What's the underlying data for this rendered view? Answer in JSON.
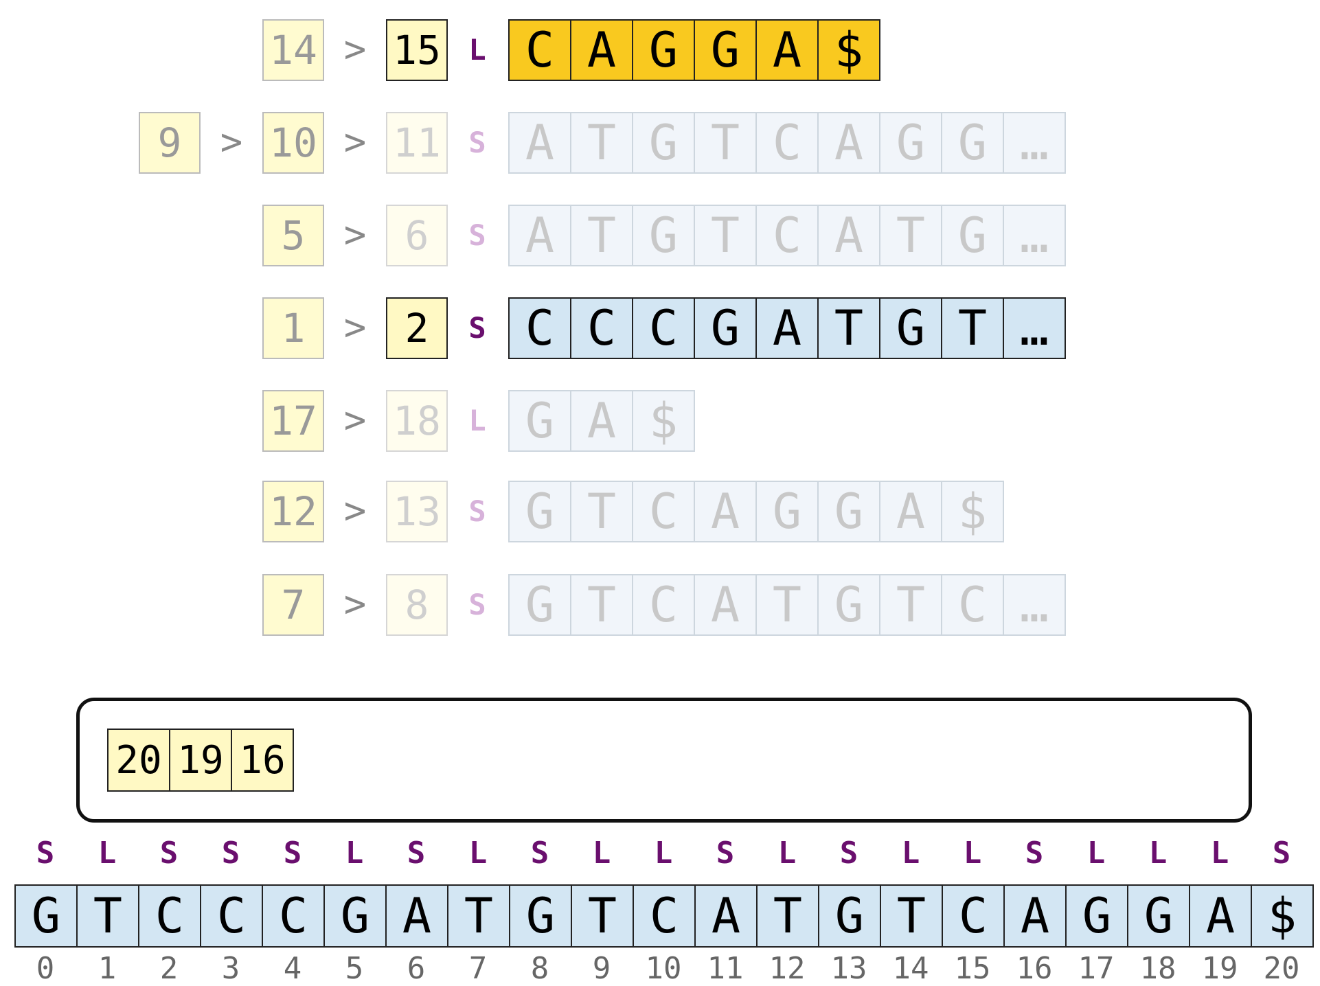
{
  "rows": [
    {
      "nums": [
        {
          "value": "14",
          "style": "dim"
        },
        {
          "value": "15",
          "style": "act"
        }
      ],
      "type": "L",
      "type_active": true,
      "chars": [
        "C",
        "A",
        "G",
        "G",
        "A",
        "$"
      ],
      "style": "orange"
    },
    {
      "nums": [
        {
          "value": "9",
          "style": "dim"
        },
        {
          "value": "10",
          "style": "dim"
        },
        {
          "value": "11",
          "style": "faint"
        }
      ],
      "type": "S",
      "type_active": false,
      "chars": [
        "A",
        "T",
        "G",
        "T",
        "C",
        "A",
        "G",
        "G",
        "…"
      ],
      "style": "faint"
    },
    {
      "nums": [
        {
          "value": "5",
          "style": "dim"
        },
        {
          "value": "6",
          "style": "faint"
        }
      ],
      "type": "S",
      "type_active": false,
      "chars": [
        "A",
        "T",
        "G",
        "T",
        "C",
        "A",
        "T",
        "G",
        "…"
      ],
      "style": "faint"
    },
    {
      "nums": [
        {
          "value": "1",
          "style": "dim"
        },
        {
          "value": "2",
          "style": "act"
        }
      ],
      "type": "S",
      "type_active": true,
      "chars": [
        "C",
        "C",
        "C",
        "G",
        "A",
        "T",
        "G",
        "T",
        "…"
      ],
      "style": "blue"
    },
    {
      "nums": [
        {
          "value": "17",
          "style": "dim"
        },
        {
          "value": "18",
          "style": "faint"
        }
      ],
      "type": "L",
      "type_active": false,
      "chars": [
        "G",
        "A",
        "$"
      ],
      "style": "faint"
    },
    {
      "nums": [
        {
          "value": "12",
          "style": "dim"
        },
        {
          "value": "13",
          "style": "faint"
        }
      ],
      "type": "S",
      "type_active": false,
      "chars": [
        "G",
        "T",
        "C",
        "A",
        "G",
        "G",
        "A",
        "$"
      ],
      "style": "faint"
    },
    {
      "nums": [
        {
          "value": "7",
          "style": "dim"
        },
        {
          "value": "8",
          "style": "faint"
        }
      ],
      "type": "S",
      "type_active": false,
      "chars": [
        "G",
        "T",
        "C",
        "A",
        "T",
        "G",
        "T",
        "C",
        "…"
      ],
      "style": "faint"
    }
  ],
  "gt_symbol": ">",
  "bucket": [
    "20",
    "19",
    "16"
  ],
  "sequence": {
    "types": [
      "S",
      "L",
      "S",
      "S",
      "S",
      "L",
      "S",
      "L",
      "S",
      "L",
      "L",
      "S",
      "L",
      "S",
      "L",
      "L",
      "S",
      "L",
      "L",
      "L",
      "S"
    ],
    "chars": [
      "G",
      "T",
      "C",
      "C",
      "C",
      "G",
      "A",
      "T",
      "G",
      "T",
      "C",
      "A",
      "T",
      "G",
      "T",
      "C",
      "A",
      "G",
      "G",
      "A",
      "$"
    ],
    "indices": [
      "0",
      "1",
      "2",
      "3",
      "4",
      "5",
      "6",
      "7",
      "8",
      "9",
      "10",
      "11",
      "12",
      "13",
      "14",
      "15",
      "16",
      "17",
      "18",
      "19",
      "20"
    ]
  }
}
